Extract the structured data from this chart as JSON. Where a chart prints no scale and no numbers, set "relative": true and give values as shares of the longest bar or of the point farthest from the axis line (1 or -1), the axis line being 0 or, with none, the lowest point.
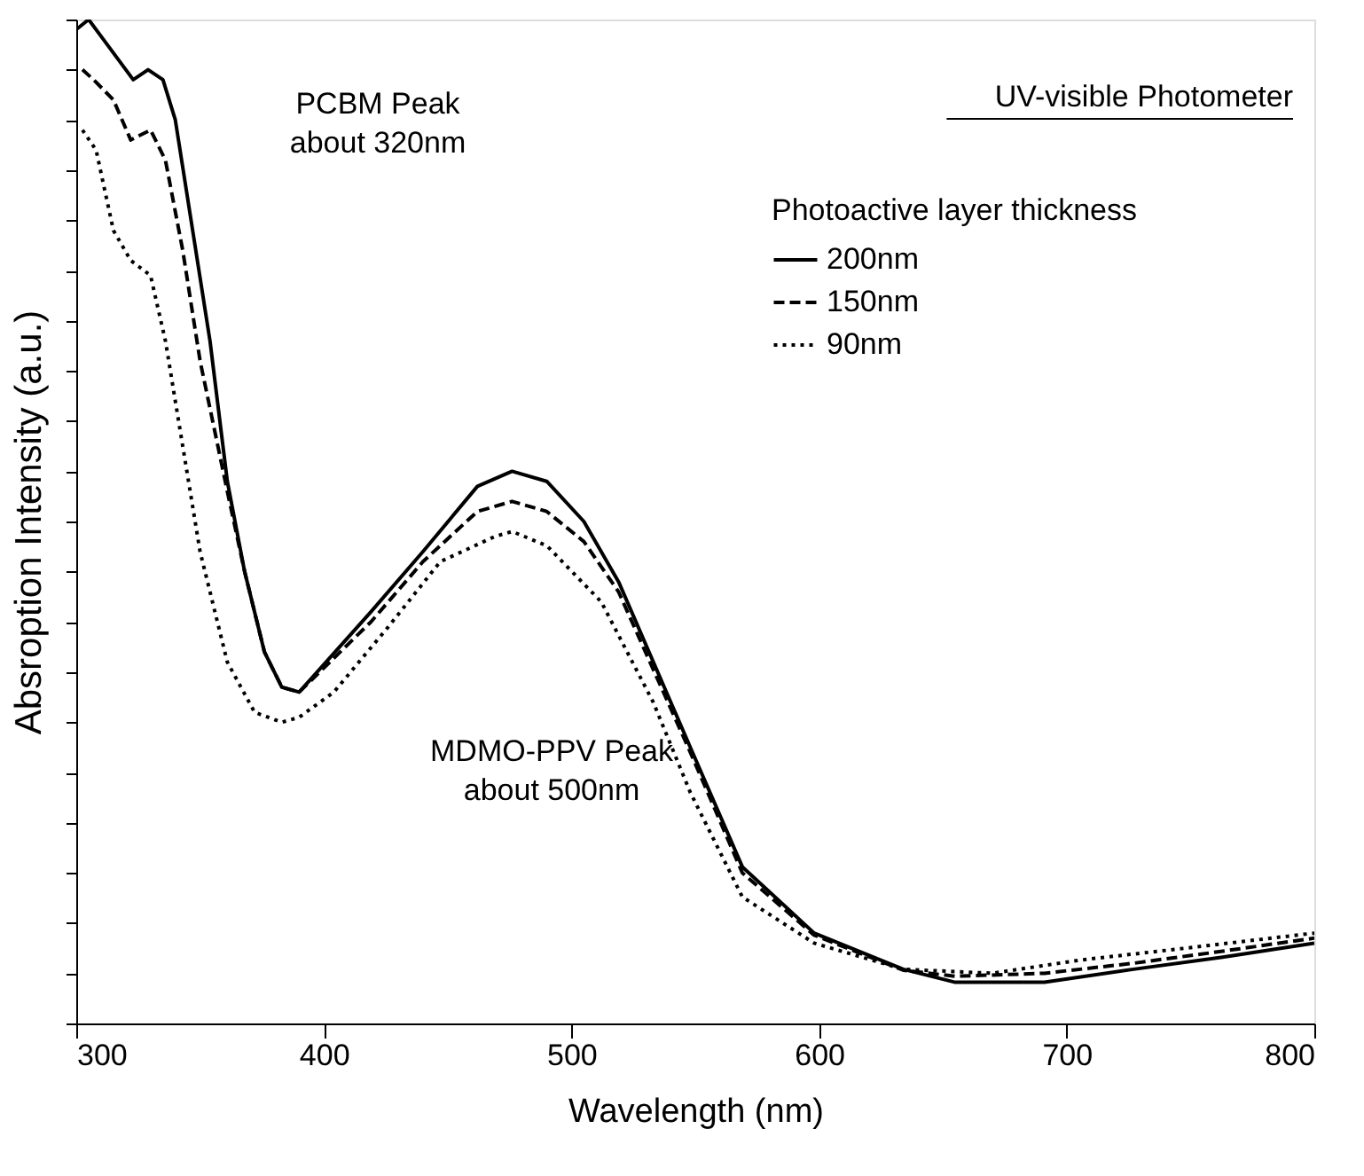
{
  "chart_data": {
    "type": "line",
    "relative": true,
    "xlabel": "Wavelength (nm)",
    "ylabel": "Absroption Intensity (a.u.)",
    "title": "UV-visible Photometer",
    "legend_title": "Photoactive layer thickness",
    "legend": "top right",
    "xlim": [
      300,
      800
    ],
    "xticks": [
      300,
      400,
      500,
      600,
      700,
      800
    ],
    "tick_labels": "x",
    "annotations": [
      "PCBM Peak\nabout 320nm",
      "MDMO-PPV Peak\nabout 500nm"
    ],
    "series": [
      {
        "name": "200nm",
        "color": "#000000",
        "line_style": "solid",
        "x": [
          300,
          305,
          311,
          323,
          329,
          335,
          340,
          347,
          354,
          361,
          368,
          376,
          383,
          390,
          419,
          440,
          462,
          476,
          490,
          505,
          519,
          548,
          569,
          598,
          634,
          655,
          691,
          727,
          763,
          800
        ],
        "values": [
          0.99,
          1.0,
          0.98,
          0.94,
          0.95,
          0.94,
          0.9,
          0.79,
          0.68,
          0.54,
          0.45,
          0.37,
          0.335,
          0.33,
          0.41,
          0.47,
          0.535,
          0.55,
          0.54,
          0.5,
          0.44,
          0.275,
          0.156,
          0.09,
          0.054,
          0.041,
          0.041,
          0.054,
          0.066,
          0.08
        ]
      },
      {
        "name": "150nm",
        "color": "#000000",
        "line_style": "dashed",
        "x": [
          302.5,
          307,
          315,
          322,
          330,
          336,
          343,
          350,
          361,
          368,
          376,
          383,
          390,
          419,
          440,
          462,
          476,
          490,
          505,
          519,
          548,
          569,
          598,
          634,
          655,
          691,
          727,
          763,
          800
        ],
        "values": [
          0.95,
          0.94,
          0.92,
          0.88,
          0.89,
          0.86,
          0.77,
          0.66,
          0.53,
          0.45,
          0.37,
          0.335,
          0.33,
          0.4,
          0.46,
          0.51,
          0.52,
          0.51,
          0.48,
          0.43,
          0.27,
          0.15,
          0.088,
          0.053,
          0.047,
          0.05,
          0.06,
          0.072,
          0.085
        ]
      },
      {
        "name": "90nm",
        "color": "#000000",
        "line_style": "dotted",
        "x": [
          302.5,
          308,
          315,
          322,
          330,
          336,
          343,
          350,
          361,
          372,
          383,
          390,
          404,
          426,
          447,
          469,
          476,
          490,
          512,
          533,
          548,
          569,
          598,
          634,
          670,
          705,
          748,
          800
        ],
        "values": [
          0.89,
          0.87,
          0.79,
          0.76,
          0.745,
          0.68,
          0.575,
          0.47,
          0.36,
          0.31,
          0.3,
          0.305,
          0.33,
          0.395,
          0.46,
          0.485,
          0.49,
          0.476,
          0.42,
          0.32,
          0.23,
          0.126,
          0.08,
          0.054,
          0.05,
          0.063,
          0.075,
          0.09
        ]
      }
    ]
  }
}
